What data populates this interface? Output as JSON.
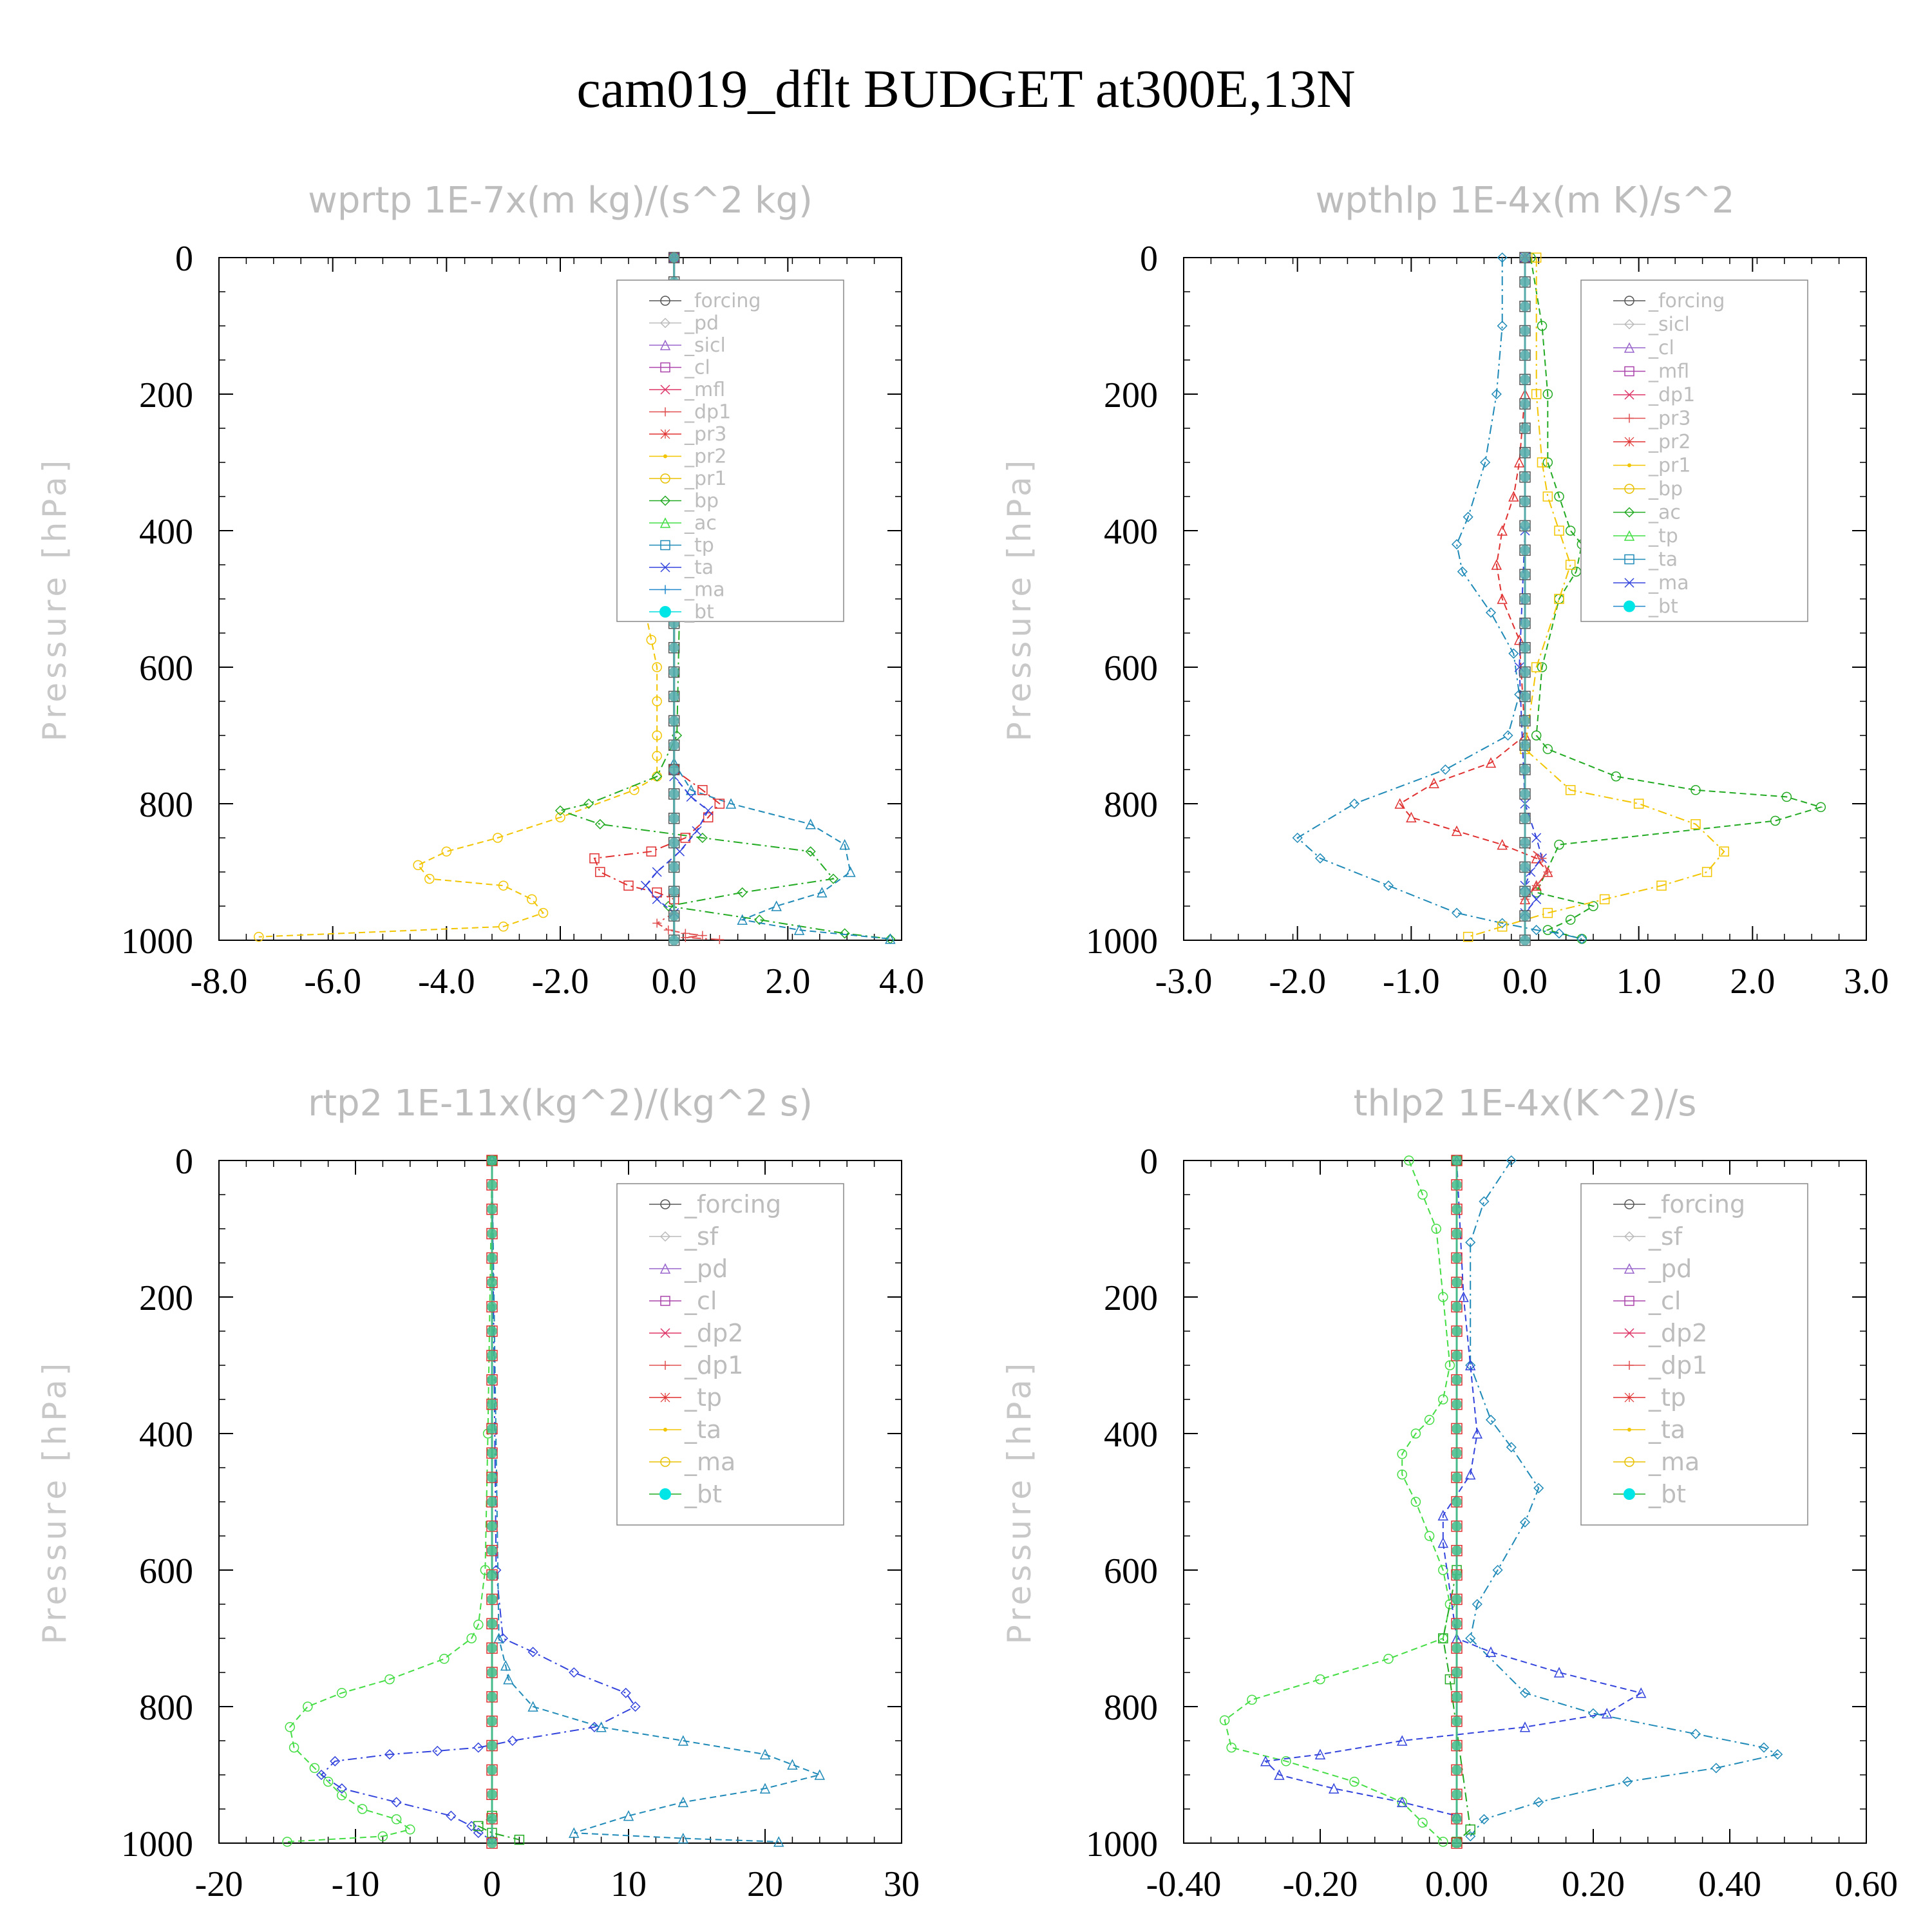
{
  "title": "cam019_dflt  BUDGET at300E,13N",
  "chart_data": [
    {
      "type": "line",
      "title": "wprtp  1E-7x(m kg)/(s^2 kg)",
      "ylabel": "Pressure [hPa]",
      "xlim": [
        -8,
        4
      ],
      "ylim": [
        1000,
        0
      ],
      "xticks": [
        "-8.0",
        "-6.0",
        "-4.0",
        "-2.0",
        "0.0",
        "2.0",
        "4.0"
      ],
      "yticks": [
        "0",
        "200",
        "400",
        "600",
        "800",
        "1000"
      ],
      "legend_position": "top-right",
      "legend": [
        "_forcing",
        "_pd",
        "_sicl",
        "_cl",
        "_mfl",
        "_dp1",
        "_pr3",
        "_pr2",
        "_pr1",
        "_bp",
        "_ac",
        "_tp",
        "_ta",
        "_ma",
        "_bt"
      ],
      "series": [
        {
          "name": "_pr1",
          "color": "#f2c500",
          "x": [
            0,
            0,
            0,
            -0.2,
            -0.3,
            -0.4,
            -0.5,
            -0.4,
            -0.3,
            -0.3,
            -0.3,
            -0.3,
            -0.3,
            -0.7,
            -2.0,
            -3.1,
            -4.0,
            -4.5,
            -4.3,
            -3.0,
            -2.5,
            -2.3,
            -3.0,
            -7.3
          ],
          "y": [
            0,
            200,
            400,
            440,
            470,
            500,
            520,
            560,
            600,
            650,
            700,
            730,
            760,
            780,
            820,
            850,
            870,
            890,
            910,
            920,
            940,
            960,
            980,
            995
          ]
        },
        {
          "name": "_bp",
          "color": "#22aa22",
          "x": [
            0,
            0,
            0.1,
            0.05,
            -0.3,
            -1.5,
            -2.0,
            -1.3,
            0.5,
            2.4,
            2.8,
            1.2,
            -0.1,
            1.5,
            3.0,
            3.8
          ],
          "y": [
            0,
            400,
            500,
            700,
            760,
            800,
            810,
            830,
            850,
            870,
            910,
            930,
            950,
            970,
            990,
            998
          ]
        },
        {
          "name": "_tp",
          "color": "#1f8ab8",
          "x": [
            0,
            0,
            0.3,
            1.0,
            2.4,
            3.0,
            3.1,
            2.6,
            1.8,
            1.2,
            2.2,
            3.8
          ],
          "y": [
            0,
            740,
            780,
            800,
            830,
            860,
            900,
            930,
            950,
            970,
            985,
            998
          ]
        },
        {
          "name": "_pr3",
          "color": "#e03030",
          "x": [
            0,
            0,
            0.5,
            0.8,
            0.6,
            0.2,
            -0.4,
            -1.4,
            -1.3,
            -0.8,
            -0.3,
            0
          ],
          "y": [
            0,
            750,
            780,
            800,
            820,
            850,
            870,
            880,
            900,
            920,
            930,
            940
          ]
        },
        {
          "name": "_ta",
          "color": "#3344dd",
          "x": [
            0,
            0,
            0.3,
            0.6,
            0.4,
            0.1,
            -0.3,
            -0.5,
            -0.3,
            0
          ],
          "y": [
            0,
            760,
            790,
            810,
            840,
            870,
            900,
            920,
            940,
            960
          ]
        },
        {
          "name": "_dp1",
          "color": "#e05050",
          "x": [
            0,
            0,
            -0.3,
            -0.1,
            0.2,
            0.5,
            0.2,
            0.8
          ],
          "y": [
            0,
            960,
            975,
            985,
            990,
            993,
            996,
            999
          ]
        },
        {
          "name": "_forcing",
          "color": "#555555",
          "x": [
            0,
            0,
            0,
            0,
            0,
            0
          ],
          "y": [
            0,
            200,
            400,
            600,
            800,
            1000
          ]
        },
        {
          "name": "_bt",
          "color": "#55aaaa",
          "x": [
            0,
            0,
            0,
            0,
            0,
            0
          ],
          "y": [
            0,
            200,
            400,
            600,
            800,
            1000
          ]
        }
      ]
    },
    {
      "type": "line",
      "title": "wpthlp  1E-4x(m K)/s^2",
      "ylabel": "Pressure [hPa]",
      "xlim": [
        -3,
        3
      ],
      "ylim": [
        1000,
        0
      ],
      "xticks": [
        "-3.0",
        "-2.0",
        "-1.0",
        "0.0",
        "1.0",
        "2.0",
        "3.0"
      ],
      "yticks": [
        "0",
        "200",
        "400",
        "600",
        "800",
        "1000"
      ],
      "legend_position": "top-right",
      "legend": [
        "_forcing",
        "_sicl",
        "_cl",
        "_mfl",
        "_dp1",
        "_pr3",
        "_pr2",
        "_pr1",
        "_bp",
        "_ac",
        "_tp",
        "_ta",
        "_ma",
        "_bt"
      ],
      "series": [
        {
          "name": "_bp",
          "color": "#22aa22",
          "x": [
            0.05,
            0.15,
            0.2,
            0.2,
            0.3,
            0.4,
            0.5,
            0.45,
            0.3,
            0.15,
            0.1,
            0.2,
            0.8,
            1.5,
            2.3,
            2.6,
            2.2,
            0.3,
            0.1,
            0.6,
            0.4,
            0.2,
            0.5
          ],
          "y": [
            0,
            100,
            200,
            300,
            350,
            400,
            420,
            460,
            500,
            600,
            700,
            720,
            760,
            780,
            790,
            805,
            825,
            860,
            930,
            950,
            970,
            985,
            998
          ]
        },
        {
          "name": "_tp",
          "color": "#1f8ab8",
          "x": [
            -0.2,
            -0.2,
            -0.25,
            -0.35,
            -0.5,
            -0.6,
            -0.55,
            -0.3,
            -0.1,
            -0.05,
            -0.15,
            -0.7,
            -1.5,
            -2.0,
            -1.8,
            -1.2,
            -0.6,
            -0.2,
            0.1,
            0.3,
            0.5
          ],
          "y": [
            0,
            100,
            200,
            300,
            380,
            420,
            460,
            520,
            580,
            640,
            700,
            750,
            800,
            850,
            880,
            920,
            960,
            975,
            985,
            990,
            998
          ]
        },
        {
          "name": "_pr3",
          "color": "#e03030",
          "x": [
            0,
            0,
            -0.05,
            -0.1,
            -0.2,
            -0.25,
            -0.2,
            -0.05,
            0,
            -0.3,
            -0.8,
            -1.1,
            -1.0,
            -0.6,
            -0.2,
            0.1,
            0.2,
            0.1,
            0
          ],
          "y": [
            0,
            200,
            300,
            350,
            400,
            450,
            500,
            560,
            700,
            740,
            770,
            800,
            820,
            840,
            860,
            880,
            900,
            920,
            940
          ]
        },
        {
          "name": "_pr1",
          "color": "#f2c500",
          "x": [
            0.1,
            0.1,
            0.15,
            0.2,
            0.3,
            0.4,
            0.3,
            0.1,
            0,
            0.4,
            1.0,
            1.5,
            1.75,
            1.6,
            1.2,
            0.7,
            0.2,
            -0.2,
            -0.5
          ],
          "y": [
            0,
            200,
            300,
            350,
            400,
            450,
            500,
            600,
            720,
            780,
            800,
            830,
            870,
            900,
            920,
            940,
            960,
            980,
            995
          ]
        },
        {
          "name": "_ta",
          "color": "#3344dd",
          "x": [
            0,
            0,
            -0.05,
            0,
            0.1,
            0.15,
            0.05,
            0,
            0.1,
            0
          ],
          "y": [
            0,
            400,
            600,
            800,
            850,
            880,
            900,
            920,
            940,
            960
          ]
        },
        {
          "name": "_dp1",
          "color": "#e05050",
          "x": [
            0,
            0,
            0.15,
            0.2,
            0.1,
            0
          ],
          "y": [
            0,
            860,
            880,
            900,
            920,
            940
          ]
        },
        {
          "name": "_forcing",
          "color": "#555555",
          "x": [
            0,
            0,
            0,
            0,
            0,
            0
          ],
          "y": [
            0,
            200,
            400,
            600,
            800,
            1000
          ]
        },
        {
          "name": "_bt",
          "color": "#55aaaa",
          "x": [
            0,
            0,
            0,
            0,
            0,
            0
          ],
          "y": [
            0,
            200,
            400,
            600,
            800,
            1000
          ]
        }
      ]
    },
    {
      "type": "line",
      "title": "rtp2  1E-11x(kg^2)/(kg^2 s)",
      "ylabel": "Pressure [hPa]",
      "xlim": [
        -20,
        30
      ],
      "ylim": [
        1000,
        0
      ],
      "xticks": [
        "-20",
        "-10",
        "0",
        "10",
        "20",
        "30"
      ],
      "yticks": [
        "0",
        "200",
        "400",
        "600",
        "800",
        "1000"
      ],
      "legend_position": "top-right",
      "legend": [
        "_forcing",
        "_sf",
        "_pd",
        "_cl",
        "_dp2",
        "_dp1",
        "_tp",
        "_ta",
        "_ma",
        "_bt"
      ],
      "series": [
        {
          "name": "_dp1",
          "color": "#44dd44",
          "x": [
            0,
            -0.3,
            -0.5,
            -1.0,
            -1.5,
            -3.5,
            -7.5,
            -11.0,
            -13.5,
            -14.8,
            -14.5,
            -13.0,
            -12.0,
            -11.0,
            -9.5,
            -7.0,
            -6.0,
            -8.0,
            -15.0
          ],
          "y": [
            0,
            400,
            600,
            680,
            700,
            730,
            760,
            780,
            800,
            830,
            860,
            890,
            910,
            930,
            950,
            965,
            980,
            990,
            998
          ]
        },
        {
          "name": "_ta",
          "color": "#3344dd",
          "x": [
            0,
            0.3,
            0.8,
            3.0,
            6.0,
            9.8,
            10.5,
            7.5,
            1.5,
            -1.0,
            -4.0,
            -7.5,
            -11.5,
            -12.5,
            -11.0,
            -7.0,
            -3.0,
            -1.5,
            -1.0,
            0
          ],
          "y": [
            0,
            600,
            700,
            720,
            750,
            780,
            800,
            830,
            850,
            860,
            865,
            870,
            880,
            900,
            920,
            940,
            960,
            975,
            985,
            995
          ]
        },
        {
          "name": "_tp",
          "color": "#1f8ab8",
          "x": [
            0,
            0.5,
            1.0,
            1.2,
            3.0,
            8.0,
            14.0,
            20.0,
            22.0,
            24.0,
            20.0,
            14.0,
            10.0,
            6.0,
            14.0,
            21.0
          ],
          "y": [
            0,
            700,
            740,
            760,
            800,
            830,
            850,
            870,
            885,
            900,
            920,
            940,
            960,
            985,
            993,
            998
          ]
        },
        {
          "name": "_dp2",
          "color": "#22aa22",
          "x": [
            0,
            0,
            -1.0,
            0,
            2.0
          ],
          "y": [
            0,
            960,
            975,
            985,
            995
          ]
        },
        {
          "name": "_forcing",
          "color": "#e03030",
          "x": [
            0,
            0,
            0,
            0,
            0,
            0
          ],
          "y": [
            0,
            200,
            400,
            600,
            800,
            1000
          ]
        },
        {
          "name": "_bt",
          "color": "#44bb88",
          "x": [
            0,
            0,
            0,
            0,
            0,
            0
          ],
          "y": [
            0,
            200,
            400,
            600,
            800,
            1000
          ]
        }
      ]
    },
    {
      "type": "line",
      "title": "thlp2  1E-4x(K^2)/s",
      "ylabel": "Pressure [hPa]",
      "xlim": [
        -0.4,
        0.6
      ],
      "ylim": [
        1000,
        0
      ],
      "xticks": [
        "-0.40",
        "-0.20",
        "0.00",
        "0.20",
        "0.40",
        "0.60"
      ],
      "yticks": [
        "0",
        "200",
        "400",
        "600",
        "800",
        "1000"
      ],
      "legend_position": "top-right",
      "legend": [
        "_forcing",
        "_sf",
        "_pd",
        "_cl",
        "_dp2",
        "_dp1",
        "_tp",
        "_ta",
        "_ma",
        "_bt"
      ],
      "series": [
        {
          "name": "_dp1",
          "color": "#44dd44",
          "x": [
            -0.07,
            -0.05,
            -0.03,
            -0.02,
            -0.01,
            -0.02,
            -0.04,
            -0.06,
            -0.08,
            -0.08,
            -0.06,
            -0.04,
            -0.02,
            -0.01,
            -0.02,
            -0.1,
            -0.2,
            -0.3,
            -0.34,
            -0.33,
            -0.25,
            -0.15,
            -0.08,
            -0.05,
            -0.02
          ],
          "y": [
            0,
            50,
            100,
            200,
            300,
            350,
            380,
            400,
            430,
            460,
            500,
            550,
            600,
            650,
            700,
            730,
            760,
            790,
            820,
            860,
            880,
            910,
            940,
            970,
            998
          ]
        },
        {
          "name": "_tp",
          "color": "#1f8ab8",
          "x": [
            0.08,
            0.04,
            0.02,
            0.02,
            0.05,
            0.08,
            0.12,
            0.1,
            0.06,
            0.03,
            0.02,
            0.1,
            0.2,
            0.35,
            0.45,
            0.47,
            0.38,
            0.25,
            0.12,
            0.04,
            0.02
          ],
          "y": [
            0,
            60,
            120,
            300,
            380,
            420,
            480,
            530,
            600,
            650,
            700,
            780,
            810,
            840,
            860,
            870,
            890,
            910,
            940,
            965,
            990
          ]
        },
        {
          "name": "_ta",
          "color": "#3344dd",
          "x": [
            0,
            0.01,
            0.02,
            0.03,
            0.02,
            -0.02,
            -0.02,
            0,
            0.05,
            0.15,
            0.27,
            0.22,
            0.1,
            -0.08,
            -0.2,
            -0.28,
            -0.26,
            -0.18,
            -0.08,
            0
          ],
          "y": [
            0,
            200,
            300,
            400,
            460,
            520,
            560,
            700,
            720,
            750,
            780,
            810,
            830,
            850,
            870,
            880,
            900,
            920,
            940,
            960
          ]
        },
        {
          "name": "_dp2",
          "color": "#22aa22",
          "x": [
            0,
            0,
            -0.02,
            -0.01,
            0.02,
            0
          ],
          "y": [
            0,
            600,
            700,
            760,
            980,
            998
          ]
        },
        {
          "name": "_forcing",
          "color": "#e03030",
          "x": [
            0,
            0,
            0,
            0,
            0,
            0
          ],
          "y": [
            0,
            200,
            400,
            600,
            800,
            1000
          ]
        },
        {
          "name": "_bt",
          "color": "#44bb88",
          "x": [
            0,
            0,
            0,
            0,
            0,
            0
          ],
          "y": [
            0,
            200,
            400,
            600,
            800,
            1000
          ]
        }
      ]
    }
  ]
}
